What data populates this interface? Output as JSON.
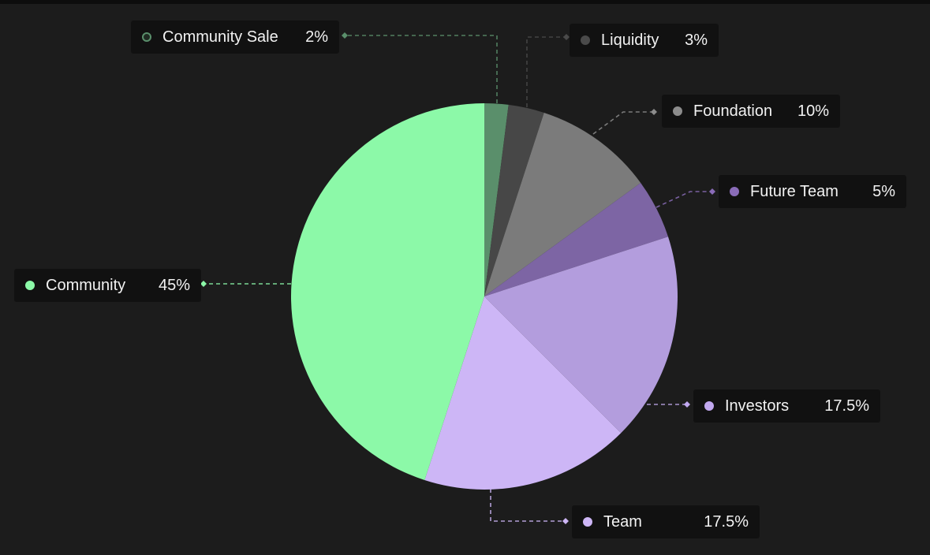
{
  "chart_data": {
    "type": "pie",
    "categories": [
      "Community Sale",
      "Liquidity",
      "Foundation",
      "Future Team",
      "Investors",
      "Team",
      "Community"
    ],
    "values": [
      2,
      3,
      10,
      5,
      17.5,
      17.5,
      45
    ],
    "value_labels": [
      "2%",
      "3%",
      "10%",
      "5%",
      "17.5%",
      "17.5%",
      "45%"
    ],
    "colors": [
      "#5a8f6b",
      "#474747",
      "#7b7b7b",
      "#7d65a4",
      "#b39ddd",
      "#cdb6f6",
      "#8cf9a8"
    ],
    "legend_dot_colors": [
      "#1f2a22",
      "#4a4a4a",
      "#8c8c8c",
      "#8a6cb8",
      "#c1a8ef",
      "#cdb6f6",
      "#8cf9a8"
    ],
    "start_angle_deg": 0,
    "direction": "clockwise",
    "legend_placement": "around the pie with dashed leader lines"
  }
}
